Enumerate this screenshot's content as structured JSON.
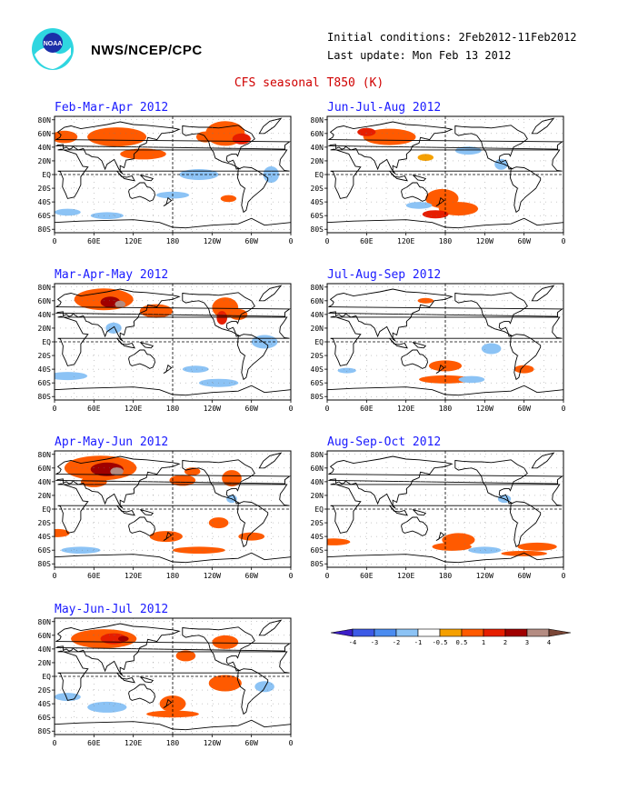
{
  "header": {
    "org": "NWS/NCEP/CPC",
    "initial_conditions": "Initial conditions: 2Feb2012-11Feb2012",
    "last_update": "Last update: Mon Feb 13 2012",
    "title": "CFS seasonal T850 (K)"
  },
  "axes": {
    "lat_labels": [
      "80N",
      "60N",
      "40N",
      "20N",
      "EQ",
      "20S",
      "40S",
      "60S",
      "80S"
    ],
    "lon_labels": [
      "0",
      "60E",
      "120E",
      "180",
      "120W",
      "60W",
      "0"
    ]
  },
  "panels": [
    {
      "title": "Feb-Mar-Apr 2012"
    },
    {
      "title": "Jun-Jul-Aug 2012"
    },
    {
      "title": "Mar-Apr-May 2012"
    },
    {
      "title": "Jul-Aug-Sep 2012"
    },
    {
      "title": "Apr-May-Jun 2012"
    },
    {
      "title": "Aug-Sep-Oct 2012"
    },
    {
      "title": "May-Jun-Jul 2012"
    }
  ],
  "colorbar": {
    "labels": [
      "-4",
      "-3",
      "-2",
      "-1",
      "-0.5",
      "0.5",
      "1",
      "2",
      "3",
      "4"
    ],
    "colors": [
      "#3c1ec8",
      "#3c5ae6",
      "#4b8cf0",
      "#8cc3f5",
      "#ffffff",
      "#f5a000",
      "#ff5a00",
      "#e61e00",
      "#a00000",
      "#b48c82",
      "#7a4636"
    ]
  },
  "colors": {
    "title": "#d00000",
    "panel_title": "#1a1aff"
  }
}
